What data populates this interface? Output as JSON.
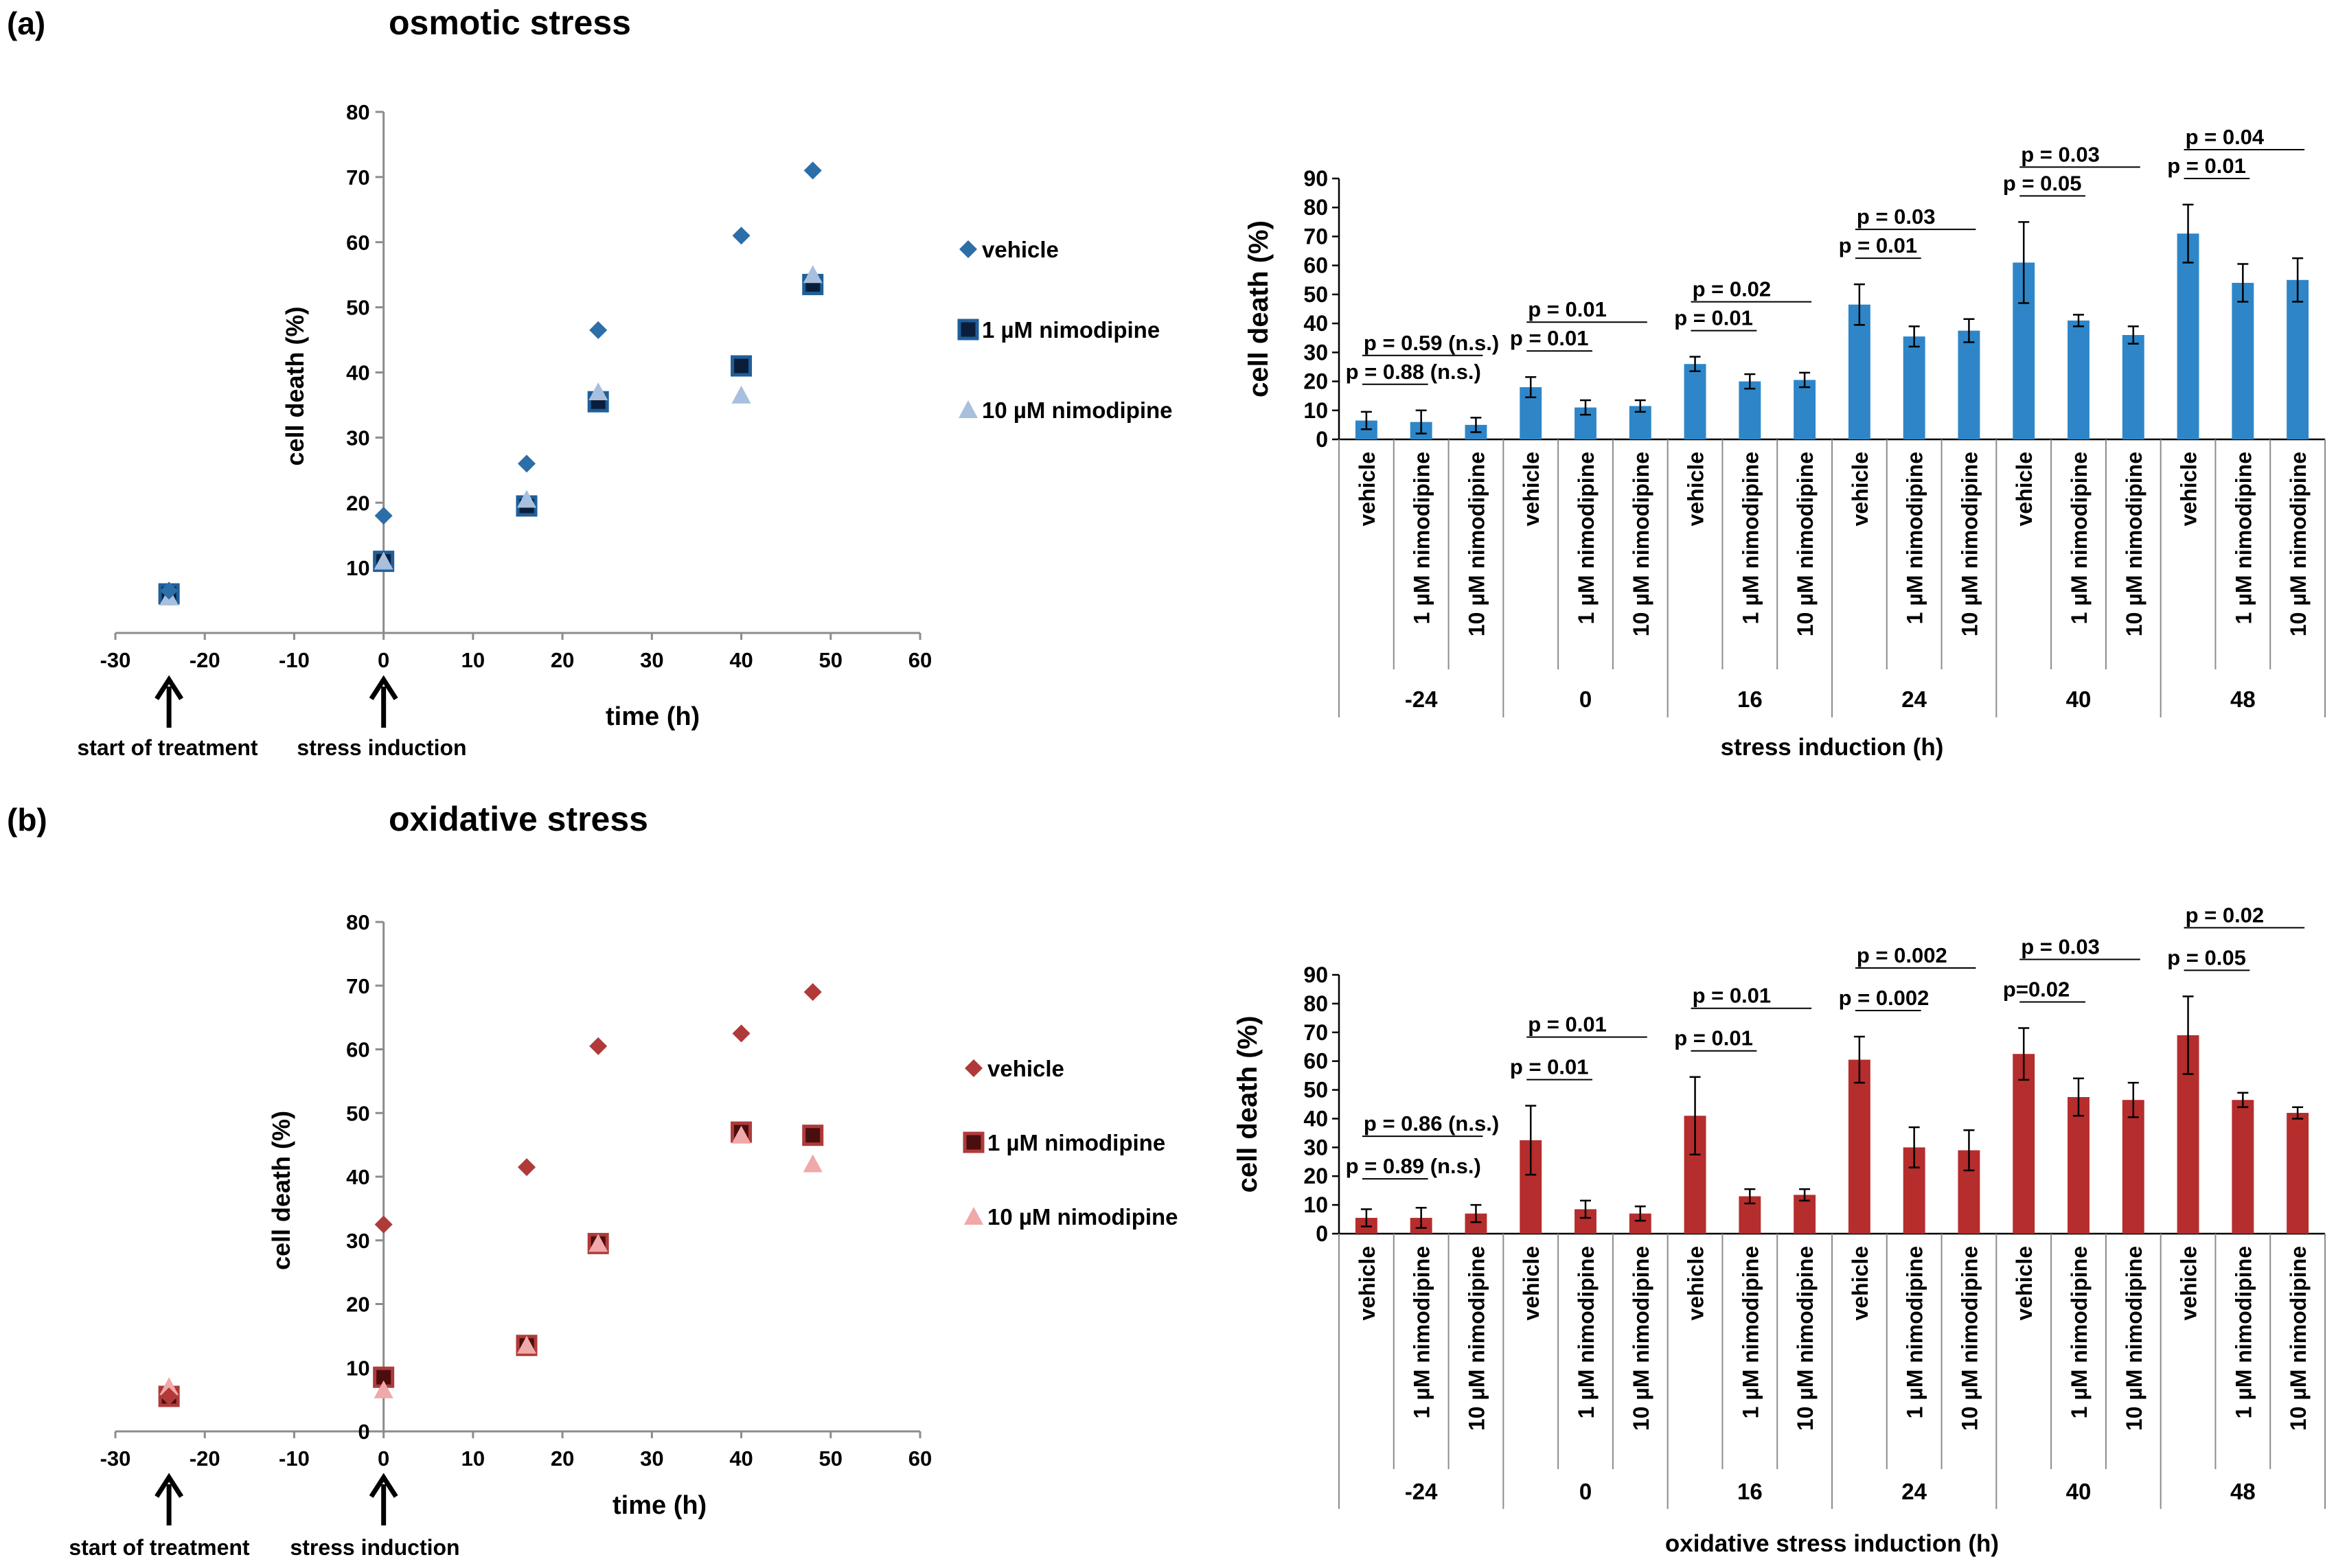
{
  "figure": {
    "panel_a_label": "(a)",
    "panel_b_label": "(b)",
    "panel_a_title": "osmotic stress",
    "panel_b_title": "oxidative stress"
  },
  "colors": {
    "osm_vehicle": "#2b6ea8",
    "osm_1uM": "#1f5f9a",
    "osm_1uM_inner": "#0a1e3a",
    "osm_10uM": "#a8bfde",
    "osm_bar": "#2e86c8",
    "ox_vehicle": "#b03a3a",
    "ox_1uM": "#b03a3a",
    "ox_1uM_inner": "#4a0e0e",
    "ox_10uM": "#f0a8a8",
    "ox_bar": "#b52d2d"
  },
  "chart_data": [
    {
      "id": "a_scatter",
      "type": "scatter",
      "title": "osmotic stress",
      "xlabel": "time (h)",
      "ylabel": "cell death (%)",
      "xlim": [
        -30,
        60
      ],
      "ylim": [
        0,
        80
      ],
      "xticks": [
        -30,
        -20,
        -10,
        0,
        10,
        20,
        30,
        40,
        50,
        60
      ],
      "yticks": [
        10,
        20,
        30,
        40,
        50,
        60,
        70,
        80
      ],
      "annotations": [
        "start of treatment",
        "stress induction"
      ],
      "series": [
        {
          "name": "vehicle",
          "marker": "diamond",
          "x": [
            -24,
            0,
            16,
            24,
            40,
            48
          ],
          "y": [
            6.5,
            18,
            26,
            46.5,
            61,
            71
          ]
        },
        {
          "name": "1 µM nimodipine",
          "marker": "square",
          "x": [
            -24,
            0,
            16,
            24,
            40,
            48
          ],
          "y": [
            6,
            11,
            19.5,
            35.5,
            41,
            53.5
          ]
        },
        {
          "name": "10 µM nimodipine",
          "marker": "triangle",
          "x": [
            -24,
            0,
            16,
            24,
            40,
            48
          ],
          "y": [
            5.5,
            11,
            20.5,
            37,
            36.5,
            55
          ]
        }
      ]
    },
    {
      "id": "a_bar",
      "type": "bar",
      "ylabel": "cell death (%)",
      "xlabel": "stress induction (h)",
      "ylim": [
        0,
        90
      ],
      "yticks": [
        0,
        10,
        20,
        30,
        40,
        50,
        60,
        70,
        80,
        90
      ],
      "groups": [
        "-24",
        "0",
        "16",
        "24",
        "40",
        "48"
      ],
      "categories": [
        "vehicle",
        "1 µM nimodipine",
        "10 µM nimodipine"
      ],
      "values": [
        [
          6.5,
          6,
          5
        ],
        [
          18,
          11,
          11.5
        ],
        [
          26,
          20,
          20.5
        ],
        [
          46.5,
          35.5,
          37.5
        ],
        [
          61,
          41,
          36
        ],
        [
          71,
          54,
          55
        ]
      ],
      "errors": [
        [
          3,
          4,
          2.5
        ],
        [
          3.5,
          2.5,
          2
        ],
        [
          2.5,
          2.5,
          2.5
        ],
        [
          7,
          3.5,
          4
        ],
        [
          14,
          2,
          3
        ],
        [
          10,
          6.5,
          7.5
        ]
      ],
      "p_values": [
        {
          "group": 0,
          "to": 1,
          "level": 0,
          "label": "p = 0.88 (n.s.)"
        },
        {
          "group": 0,
          "to": 2,
          "level": 1,
          "label": "p = 0.59 (n.s.)"
        },
        {
          "group": 1,
          "to": 1,
          "level": 0,
          "label": "p = 0.01"
        },
        {
          "group": 1,
          "to": 2,
          "level": 1,
          "label": "p = 0.01"
        },
        {
          "group": 2,
          "to": 1,
          "level": 0,
          "label": "p = 0.01"
        },
        {
          "group": 2,
          "to": 2,
          "level": 1,
          "label": "p = 0.02"
        },
        {
          "group": 3,
          "to": 1,
          "level": 0,
          "label": "p = 0.01"
        },
        {
          "group": 3,
          "to": 2,
          "level": 1,
          "label": "p = 0.03"
        },
        {
          "group": 4,
          "to": 1,
          "level": 0,
          "label": "p = 0.05"
        },
        {
          "group": 4,
          "to": 2,
          "level": 1,
          "label": "p = 0.03"
        },
        {
          "group": 5,
          "to": 1,
          "level": 0,
          "label": "p = 0.01"
        },
        {
          "group": 5,
          "to": 2,
          "level": 1,
          "label": "p = 0.04"
        }
      ]
    },
    {
      "id": "b_scatter",
      "type": "scatter",
      "title": "oxidative stress",
      "xlabel": "time (h)",
      "ylabel": "cell death (%)",
      "xlim": [
        -30,
        60
      ],
      "ylim": [
        0,
        80
      ],
      "xticks": [
        -30,
        -20,
        -10,
        0,
        10,
        20,
        30,
        40,
        50,
        60
      ],
      "yticks": [
        0,
        10,
        20,
        30,
        40,
        50,
        60,
        70,
        80
      ],
      "annotations": [
        "start of treatment",
        "stress induction"
      ],
      "series": [
        {
          "name": "vehicle",
          "marker": "diamond",
          "x": [
            -24,
            0,
            16,
            24,
            40,
            48
          ],
          "y": [
            5.5,
            32.5,
            41.5,
            60.5,
            62.5,
            69
          ]
        },
        {
          "name": "1 µM nimodipine",
          "marker": "square",
          "x": [
            -24,
            0,
            16,
            24,
            40,
            48
          ],
          "y": [
            5.5,
            8.5,
            13.5,
            29.5,
            47,
            46.5
          ]
        },
        {
          "name": "10 µM nimodipine",
          "marker": "triangle",
          "x": [
            -24,
            0,
            16,
            24,
            40,
            48
          ],
          "y": [
            7,
            6.5,
            13.5,
            29.5,
            46.5,
            42
          ]
        }
      ]
    },
    {
      "id": "b_bar",
      "type": "bar",
      "ylabel": "cell death (%)",
      "xlabel": "oxidative stress induction (h)",
      "ylim": [
        0,
        90
      ],
      "yticks": [
        0,
        10,
        20,
        30,
        40,
        50,
        60,
        70,
        80,
        90
      ],
      "groups": [
        "-24",
        "0",
        "16",
        "24",
        "40",
        "48"
      ],
      "categories": [
        "vehicle",
        "1 µM nimodipine",
        "10 µM nimodipine"
      ],
      "values": [
        [
          5.5,
          5.5,
          7
        ],
        [
          32.5,
          8.5,
          7
        ],
        [
          41,
          13,
          13.5
        ],
        [
          60.5,
          30,
          29
        ],
        [
          62.5,
          47.5,
          46.5
        ],
        [
          69,
          46.5,
          42
        ]
      ],
      "errors": [
        [
          3,
          3.5,
          3
        ],
        [
          12,
          3,
          2.5
        ],
        [
          13.5,
          2.5,
          2
        ],
        [
          8,
          7,
          7
        ],
        [
          9,
          6.5,
          6
        ],
        [
          13.5,
          2.5,
          2
        ]
      ],
      "p_values": [
        {
          "group": 0,
          "to": 1,
          "level": 0,
          "label": "p = 0.89 (n.s.)"
        },
        {
          "group": 0,
          "to": 2,
          "level": 1,
          "label": "p = 0.86 (n.s.)"
        },
        {
          "group": 1,
          "to": 1,
          "level": 0,
          "label": "p = 0.01"
        },
        {
          "group": 1,
          "to": 2,
          "level": 1,
          "label": "p = 0.01"
        },
        {
          "group": 2,
          "to": 1,
          "level": 0,
          "label": "p = 0.01"
        },
        {
          "group": 2,
          "to": 2,
          "level": 1,
          "label": "p = 0.01"
        },
        {
          "group": 3,
          "to": 1,
          "level": 0,
          "label": "p = 0.002"
        },
        {
          "group": 3,
          "to": 2,
          "level": 1,
          "label": "p = 0.002"
        },
        {
          "group": 4,
          "to": 1,
          "level": 0,
          "label": "p=0.02"
        },
        {
          "group": 4,
          "to": 2,
          "level": 1,
          "label": "p = 0.03"
        },
        {
          "group": 5,
          "to": 1,
          "level": 0,
          "label": "p = 0.05"
        },
        {
          "group": 5,
          "to": 2,
          "level": 1,
          "label": "p = 0.02"
        }
      ]
    }
  ]
}
